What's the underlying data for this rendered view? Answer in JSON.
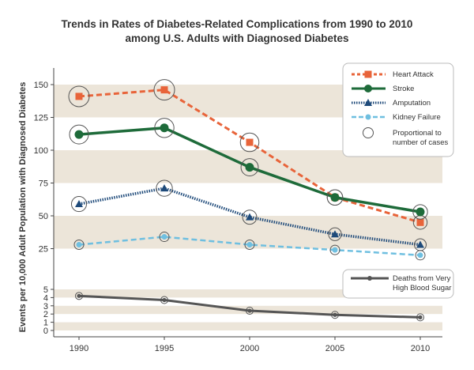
{
  "chart_data": {
    "type": "line",
    "title_line1": "Trends in Rates of Diabetes-Related Complications from 1990 to 2010",
    "title_line2": "among U.S. Adults with Diagnosed Diabetes",
    "ylabel": "Events per 10,000 Adult Population with Diagnosed Diabetes",
    "xlabel": "",
    "x": [
      1990,
      1995,
      2000,
      2005,
      2010
    ],
    "x_ticks": [
      "1990",
      "1995",
      "2000",
      "2005",
      "2010"
    ],
    "upper_y_ticks": [
      "150",
      "125",
      "100",
      "75",
      "50",
      "25"
    ],
    "lower_y_ticks": [
      "5",
      "4",
      "3",
      "2",
      "1",
      "0"
    ],
    "series": [
      {
        "name": "Heart Attack",
        "values": [
          141,
          146,
          106,
          64,
          45
        ],
        "color": "#e8643a",
        "marker": "square",
        "style": "dashed",
        "panel": "upper",
        "proportional": [
          true,
          true,
          true,
          true,
          true
        ]
      },
      {
        "name": "Stroke",
        "values": [
          112,
          117,
          87,
          64,
          53
        ],
        "color": "#1e6b3a",
        "marker": "circle",
        "style": "solid",
        "panel": "upper",
        "proportional": [
          true,
          true,
          true,
          true,
          true
        ]
      },
      {
        "name": "Amputation",
        "values": [
          59,
          71,
          49,
          36,
          28
        ],
        "color": "#1e4a7a",
        "marker": "triangle",
        "style": "dotted",
        "panel": "upper",
        "proportional": [
          true,
          true,
          true,
          true,
          true
        ]
      },
      {
        "name": "Kidney Failure",
        "values": [
          28,
          34,
          28,
          24,
          20
        ],
        "color": "#6fbfe0",
        "marker": "circle-small",
        "style": "dashed",
        "panel": "upper",
        "proportional": [
          true,
          true,
          true,
          true,
          true
        ]
      },
      {
        "name": "Deaths from Very High Blood Sugar",
        "values": [
          4.2,
          3.7,
          2.4,
          1.9,
          1.6
        ],
        "color": "#555555",
        "marker": "circle-small",
        "style": "solid",
        "panel": "lower",
        "proportional": [
          true,
          true,
          true,
          true,
          true
        ]
      }
    ],
    "legend_proportional": "Proportional to number of cases",
    "legend_proportional_line1": "Proportional to",
    "legend_proportional_line2": "number of cases",
    "legend_deaths_line1": "Deaths from Very",
    "legend_deaths_line2": "High Blood Sugar",
    "legend_placement": "top-right",
    "grid": true
  },
  "colors": {
    "band": "#ece5d9",
    "axis": "#444444",
    "ring": "#555555"
  }
}
